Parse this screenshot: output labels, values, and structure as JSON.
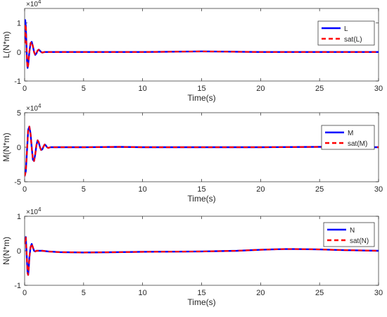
{
  "colors": {
    "primary_series": "#0000ff",
    "saturated_series": "#ff0000",
    "axis": "#262626",
    "background": "#ffffff"
  },
  "chart_data": [
    {
      "type": "line",
      "xlabel": "Time(s)",
      "ylabel": "L(N*m)",
      "exponent": "×10",
      "exponent_power": "4",
      "xlim": [
        0,
        30
      ],
      "ylim": [
        -1,
        1.5
      ],
      "x_ticks": [
        0,
        5,
        10,
        15,
        20,
        25,
        30
      ],
      "y_ticks": [
        -1,
        0,
        1
      ],
      "grid": false,
      "legend_position": "top-right",
      "series": [
        {
          "name": "L",
          "style": "solid",
          "color": "#0000ff",
          "x": [
            0,
            0.05,
            0.1,
            0.15,
            0.2,
            0.25,
            0.3,
            0.4,
            0.5,
            0.6,
            0.7,
            0.8,
            0.9,
            1.0,
            1.1,
            1.2,
            1.3,
            1.4,
            1.5,
            1.7,
            2,
            3,
            5,
            10,
            15,
            20,
            25,
            30
          ],
          "y": [
            0.3,
            1.1,
            0.9,
            0.3,
            -0.3,
            -0.55,
            -0.45,
            0,
            0.3,
            0.35,
            0.2,
            0,
            -0.1,
            -0.05,
            0.05,
            0.08,
            0.04,
            0,
            -0.02,
            0,
            0,
            0,
            0,
            0,
            0.02,
            0,
            0,
            0
          ]
        },
        {
          "name": "sat(L)",
          "style": "dashed",
          "color": "#ff0000",
          "x": [
            0,
            0.05,
            0.1,
            0.15,
            0.2,
            0.25,
            0.3,
            0.4,
            0.5,
            0.6,
            0.7,
            0.8,
            0.9,
            1.0,
            1.1,
            1.2,
            1.3,
            1.4,
            1.5,
            1.7,
            2,
            3,
            5,
            10,
            15,
            20,
            25,
            30
          ],
          "y": [
            0.3,
            0.95,
            0.9,
            0.3,
            -0.3,
            -0.55,
            -0.45,
            0,
            0.3,
            0.35,
            0.2,
            0,
            -0.1,
            -0.05,
            0.05,
            0.08,
            0.04,
            0,
            -0.02,
            0,
            0,
            0,
            0,
            0,
            0.02,
            0,
            0,
            0
          ]
        }
      ]
    },
    {
      "type": "line",
      "xlabel": "Time(s)",
      "ylabel": "M(N*m)",
      "exponent": "×10",
      "exponent_power": "4",
      "xlim": [
        0,
        30
      ],
      "ylim": [
        -5,
        5
      ],
      "x_ticks": [
        0,
        5,
        10,
        15,
        20,
        25,
        30
      ],
      "y_ticks": [
        -5,
        0,
        5
      ],
      "grid": false,
      "legend_position": "top-right",
      "series": [
        {
          "name": "M",
          "style": "solid",
          "color": "#0000ff",
          "x": [
            0,
            0.1,
            0.2,
            0.3,
            0.4,
            0.5,
            0.6,
            0.7,
            0.8,
            0.9,
            1.0,
            1.1,
            1.2,
            1.3,
            1.4,
            1.5,
            1.6,
            1.7,
            1.8,
            1.9,
            2.0,
            2.2,
            2.5,
            3,
            5,
            8,
            10,
            15,
            20,
            25,
            30
          ],
          "y": [
            -4.2,
            -3.5,
            -0.5,
            2.5,
            3.0,
            2.0,
            0,
            -1.8,
            -2.0,
            -1.0,
            0.3,
            1.0,
            0.7,
            0,
            -0.4,
            -0.3,
            0.1,
            0.4,
            0.25,
            0,
            -0.1,
            0,
            0,
            0,
            0,
            0.05,
            0,
            0,
            0,
            0.05,
            0
          ]
        },
        {
          "name": "sat(M)",
          "style": "dashed",
          "color": "#ff0000",
          "x": [
            0,
            0.1,
            0.2,
            0.3,
            0.4,
            0.5,
            0.6,
            0.7,
            0.8,
            0.9,
            1.0,
            1.1,
            1.2,
            1.3,
            1.4,
            1.5,
            1.6,
            1.7,
            1.8,
            1.9,
            2.0,
            2.2,
            2.5,
            3,
            5,
            8,
            10,
            15,
            20,
            25,
            30
          ],
          "y": [
            -4.2,
            -3.5,
            -0.5,
            2.5,
            3.0,
            2.0,
            0,
            -1.8,
            -2.0,
            -1.0,
            0.3,
            1.0,
            0.7,
            0,
            -0.4,
            -0.3,
            0.1,
            0.4,
            0.25,
            0,
            -0.1,
            0,
            0,
            0,
            0,
            0.05,
            0,
            0,
            0,
            0.05,
            0
          ]
        }
      ]
    },
    {
      "type": "line",
      "xlabel": "Time(s)",
      "ylabel": "N(N*m)",
      "exponent": "×10",
      "exponent_power": "4",
      "xlim": [
        0,
        30
      ],
      "ylim": [
        -1,
        1
      ],
      "x_ticks": [
        0,
        5,
        10,
        15,
        20,
        25,
        30
      ],
      "y_ticks": [
        -1,
        0,
        1
      ],
      "grid": false,
      "legend_position": "top-right",
      "series": [
        {
          "name": "N",
          "style": "solid",
          "color": "#0000ff",
          "x": [
            0,
            0.1,
            0.2,
            0.25,
            0.3,
            0.35,
            0.4,
            0.5,
            0.6,
            0.7,
            0.8,
            0.9,
            1.0,
            1.2,
            1.5,
            2,
            3,
            5,
            8,
            10,
            15,
            18,
            20,
            22,
            23,
            25,
            27,
            30
          ],
          "y": [
            0.2,
            0.4,
            -0.3,
            -0.65,
            -0.7,
            -0.5,
            -0.2,
            0.1,
            0.2,
            0.1,
            0,
            -0.02,
            0,
            0,
            0,
            -0.02,
            -0.04,
            -0.05,
            -0.04,
            -0.03,
            -0.02,
            0,
            0.03,
            0.05,
            0.05,
            0.04,
            0.02,
            0
          ]
        },
        {
          "name": "sat(N)",
          "style": "dashed",
          "color": "#ff0000",
          "x": [
            0,
            0.1,
            0.2,
            0.25,
            0.3,
            0.35,
            0.4,
            0.5,
            0.6,
            0.7,
            0.8,
            0.9,
            1.0,
            1.2,
            1.5,
            2,
            3,
            5,
            8,
            10,
            15,
            18,
            20,
            22,
            23,
            25,
            27,
            30
          ],
          "y": [
            0.2,
            0.4,
            -0.3,
            -0.65,
            -0.7,
            -0.5,
            -0.2,
            0.1,
            0.2,
            0.1,
            0,
            -0.02,
            0,
            0,
            0,
            -0.02,
            -0.04,
            -0.05,
            -0.04,
            -0.03,
            -0.02,
            0,
            0.03,
            0.05,
            0.05,
            0.04,
            0.02,
            0
          ]
        }
      ]
    }
  ]
}
